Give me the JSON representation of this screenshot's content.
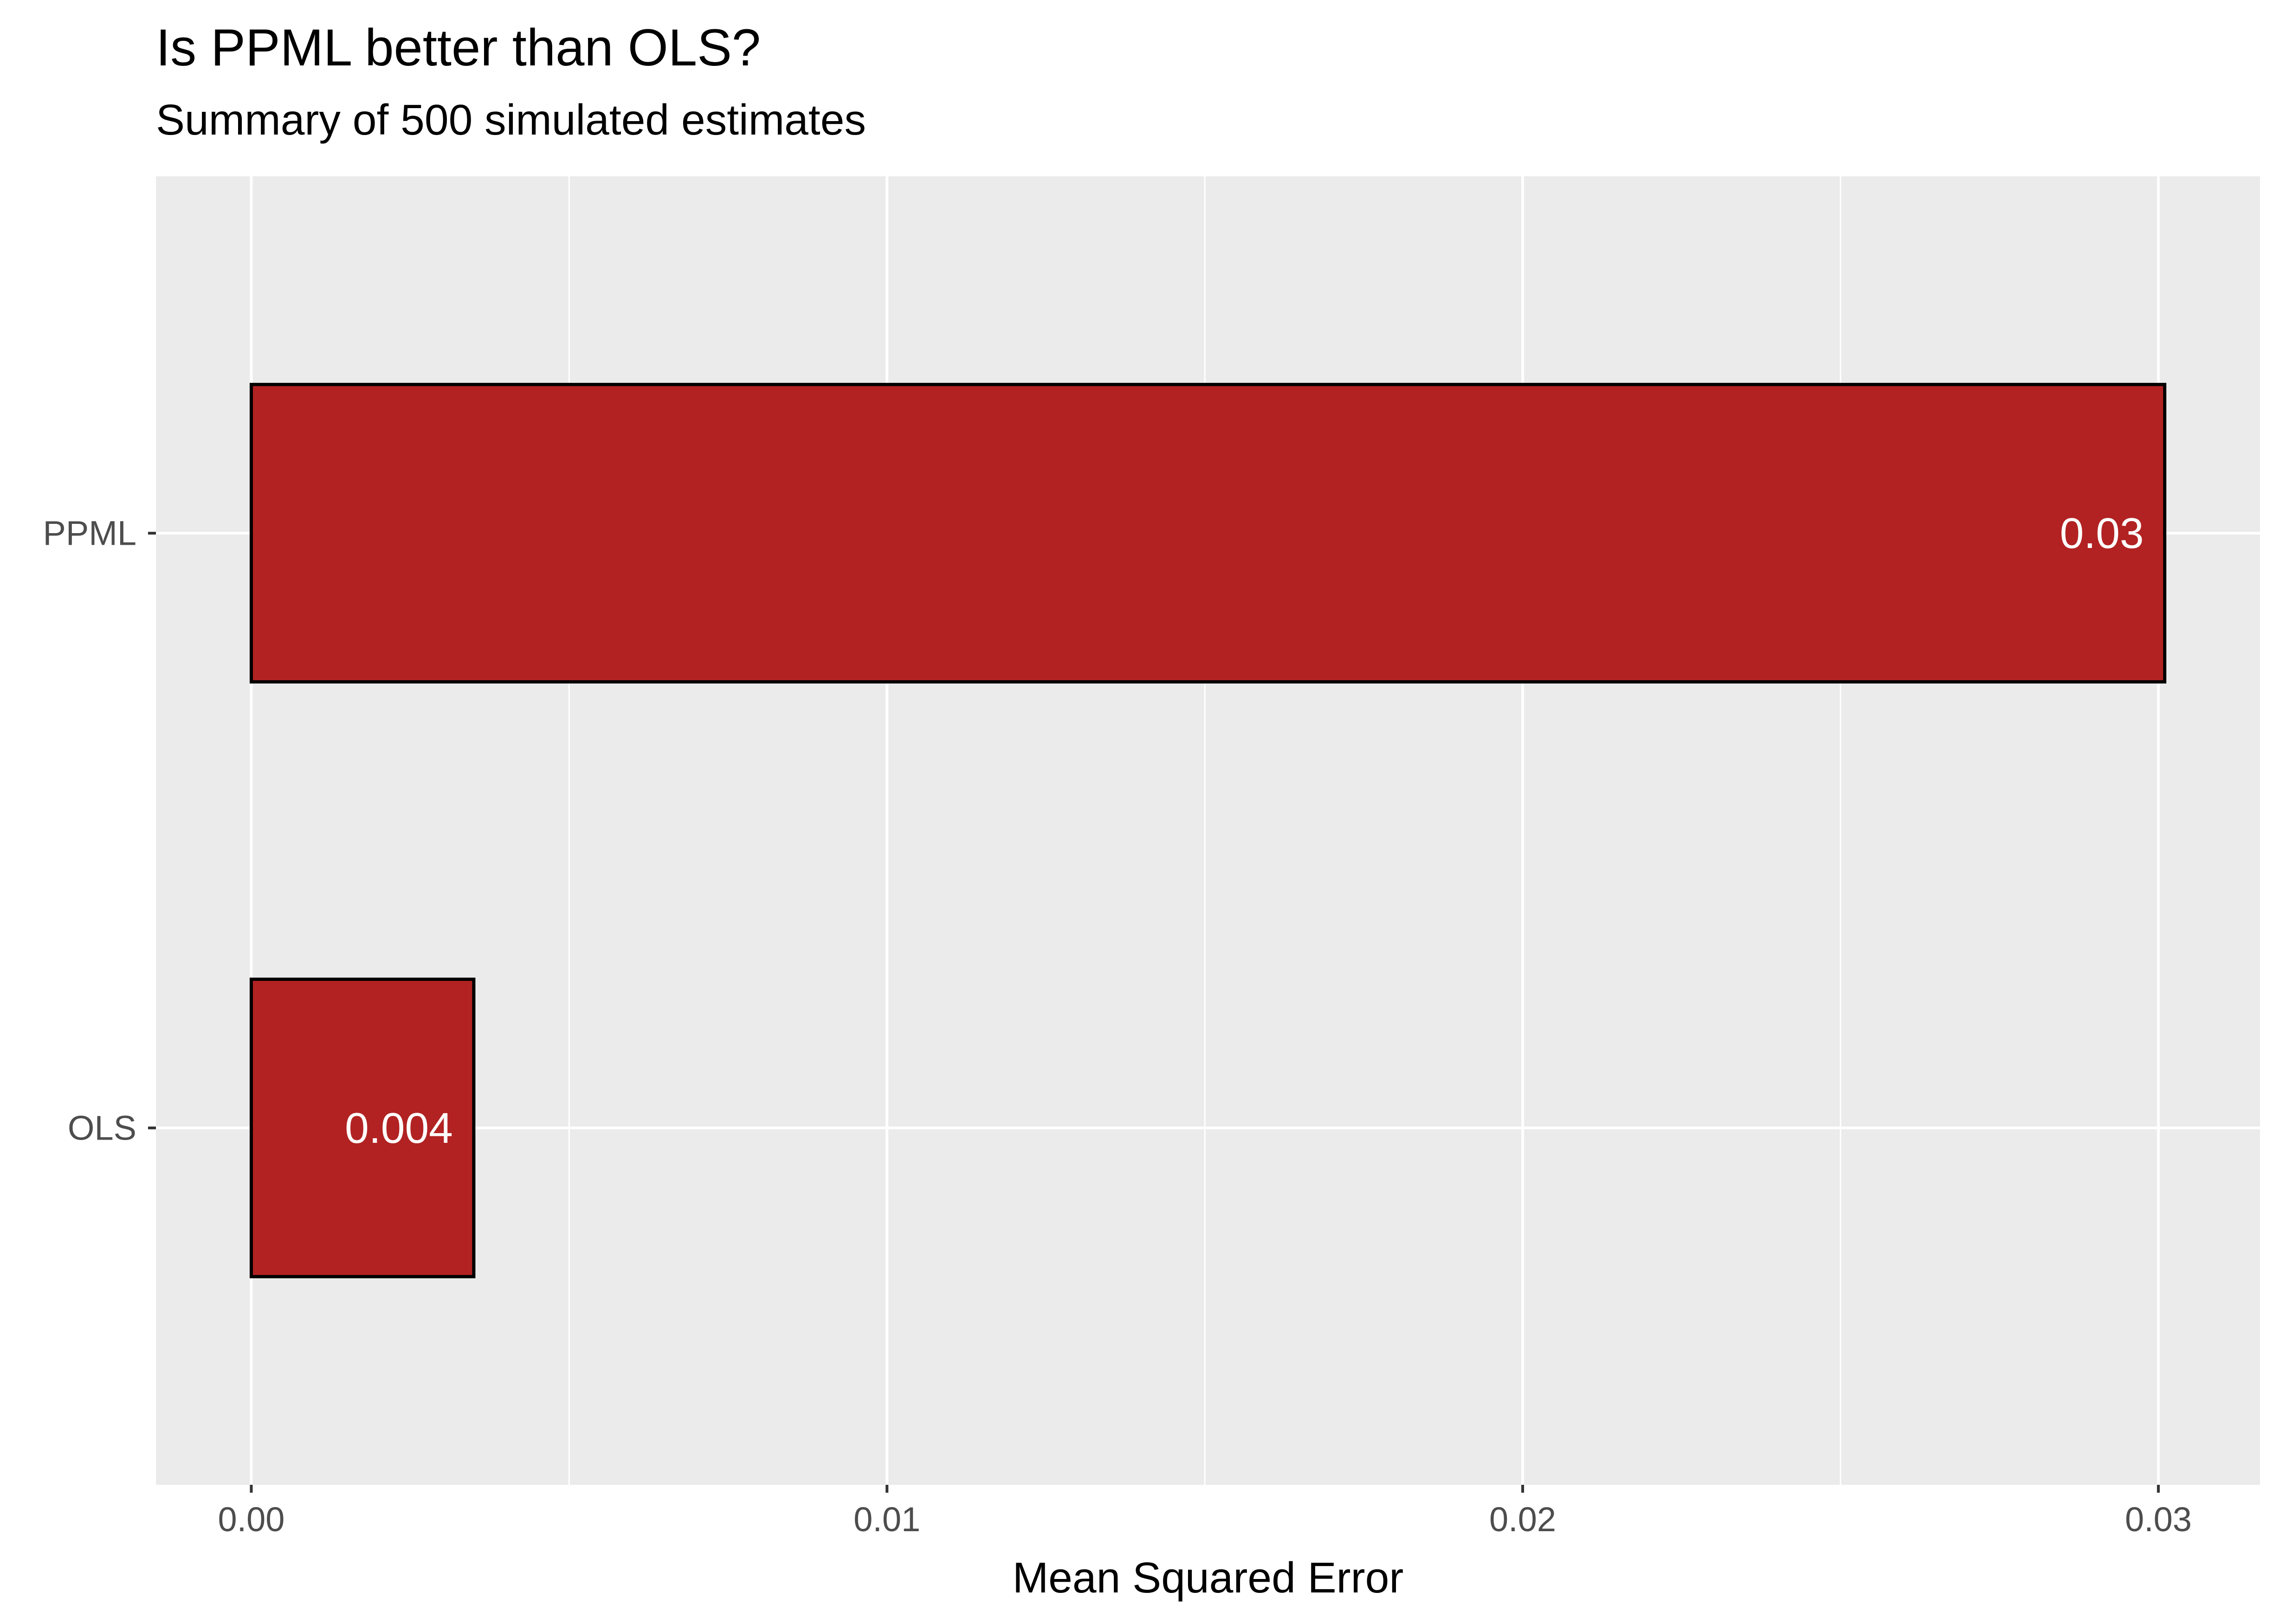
{
  "chart_data": {
    "type": "bar",
    "orientation": "horizontal",
    "title": "Is PPML better than OLS?",
    "subtitle": "Summary of 500 simulated estimates",
    "xlabel": "Mean Squared Error",
    "ylabel": "",
    "categories": [
      "PPML",
      "OLS"
    ],
    "values": [
      0.0301,
      0.0035
    ],
    "data_labels": [
      "0.03",
      "0.004"
    ],
    "xlim": [
      -0.0015,
      0.0316
    ],
    "xticks": [
      0.0,
      0.01,
      0.02,
      0.03
    ],
    "xtick_labels": [
      "0.00",
      "0.01",
      "0.02",
      "0.03"
    ],
    "grid": true,
    "legend": "none",
    "colors": {
      "bar_fill": "#B22222",
      "bar_outline": "#000000",
      "panel_background": "#EBEBEB",
      "grid_line": "#FFFFFF",
      "data_label": "#FFFFFF",
      "tick_label": "#4D4D4D",
      "axis_tick": "#333333"
    }
  }
}
